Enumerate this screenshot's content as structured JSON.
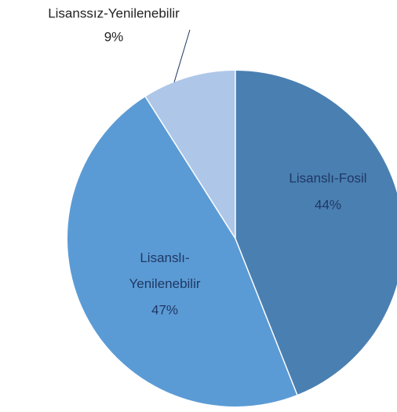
{
  "chart_data": {
    "type": "pie",
    "categories": [
      "Lisanslı-Fosil",
      "Lisanslı-Yenilenebilir",
      "Lisanssız-Yenilenebilir"
    ],
    "values": [
      44,
      47,
      9
    ],
    "value_labels": [
      "44%",
      "47%",
      "9%"
    ],
    "colors": [
      "#4a7fb1",
      "#5b9bd5",
      "#aec7e8"
    ],
    "start_angle": 0,
    "direction": "clockwise"
  }
}
